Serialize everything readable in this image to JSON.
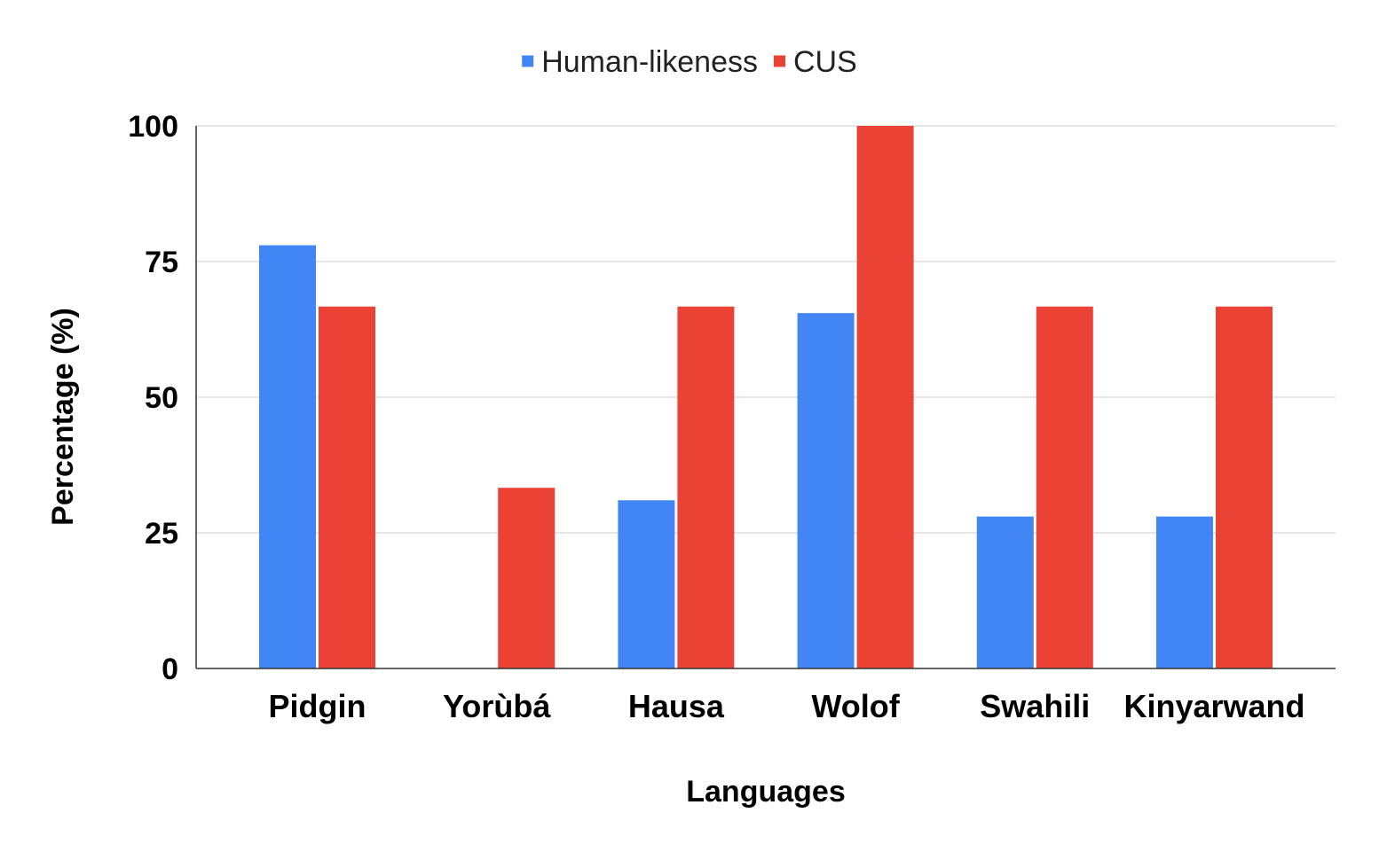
{
  "chart_data": {
    "type": "bar",
    "xlabel": "Languages",
    "ylabel": "Percentage (%)",
    "categories": [
      "Pidgin",
      "Yorùbá",
      "Hausa",
      "Wolof",
      "Swahili",
      "Kinyarwand"
    ],
    "series": [
      {
        "name": "Human-likeness",
        "color": "#4285f4",
        "values": [
          78,
          0,
          31,
          65.5,
          28,
          28
        ]
      },
      {
        "name": "CUS",
        "color": "#ea4335",
        "values": [
          66.7,
          33.3,
          66.7,
          100,
          66.7,
          66.7
        ]
      }
    ],
    "ylim": [
      0,
      100
    ],
    "yticks": [
      0,
      25,
      50,
      75,
      100
    ],
    "grid": true,
    "legend_position": "top-center"
  }
}
